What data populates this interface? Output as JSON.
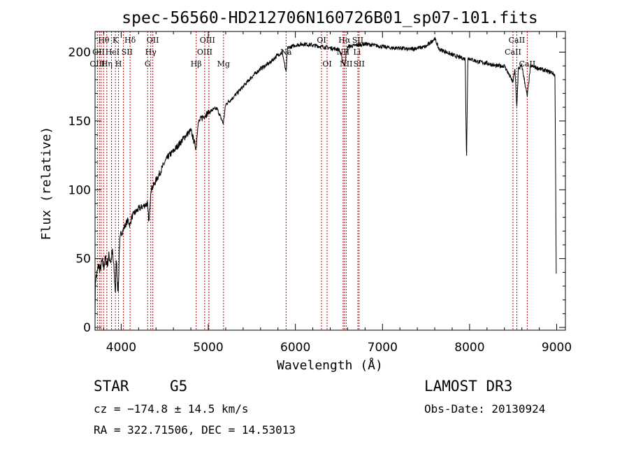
{
  "chart_data": {
    "type": "line",
    "title": "spec-56560-HD212706N160726B01_sp07-101.fits",
    "xlabel": "Wavelength (Å)",
    "ylabel": "Flux (relative)",
    "xlim": [
      3700,
      9100
    ],
    "ylim": [
      -2,
      215
    ],
    "x_ticks": [
      4000,
      5000,
      6000,
      7000,
      8000,
      9000
    ],
    "y_ticks": [
      0,
      50,
      100,
      150,
      200
    ],
    "grid": false,
    "series": [
      {
        "anchors": [
          [
            3700,
            10
          ],
          [
            3705,
            35
          ],
          [
            3720,
            38
          ],
          [
            3740,
            45
          ],
          [
            3760,
            42
          ],
          [
            3780,
            48
          ],
          [
            3800,
            44
          ],
          [
            3820,
            50
          ],
          [
            3840,
            46
          ],
          [
            3860,
            52
          ],
          [
            3880,
            48
          ],
          [
            3900,
            55
          ],
          [
            3920,
            40
          ],
          [
            3933,
            25
          ],
          [
            3945,
            50
          ],
          [
            3960,
            30
          ],
          [
            3968,
            28
          ],
          [
            3980,
            60
          ],
          [
            4000,
            68
          ],
          [
            4030,
            72
          ],
          [
            4060,
            76
          ],
          [
            4080,
            78
          ],
          [
            4100,
            74
          ],
          [
            4120,
            80
          ],
          [
            4150,
            83
          ],
          [
            4200,
            86
          ],
          [
            4250,
            88
          ],
          [
            4300,
            90
          ],
          [
            4320,
            76
          ],
          [
            4340,
            100
          ],
          [
            4380,
            104
          ],
          [
            4400,
            107
          ],
          [
            4450,
            113
          ],
          [
            4500,
            120
          ],
          [
            4550,
            125
          ],
          [
            4600,
            128
          ],
          [
            4650,
            132
          ],
          [
            4700,
            136
          ],
          [
            4750,
            140
          ],
          [
            4800,
            143
          ],
          [
            4861,
            130
          ],
          [
            4880,
            148
          ],
          [
            4920,
            152
          ],
          [
            4960,
            154
          ],
          [
            5000,
            156
          ],
          [
            5050,
            158
          ],
          [
            5100,
            159
          ],
          [
            5172,
            148
          ],
          [
            5200,
            162
          ],
          [
            5300,
            168
          ],
          [
            5400,
            175
          ],
          [
            5500,
            182
          ],
          [
            5600,
            188
          ],
          [
            5700,
            192
          ],
          [
            5800,
            198
          ],
          [
            5850,
            200
          ],
          [
            5893,
            185
          ],
          [
            5910,
            203
          ],
          [
            6000,
            205
          ],
          [
            6100,
            206
          ],
          [
            6200,
            205
          ],
          [
            6300,
            204
          ],
          [
            6400,
            203
          ],
          [
            6500,
            202
          ],
          [
            6563,
            190
          ],
          [
            6600,
            204
          ],
          [
            6700,
            205
          ],
          [
            6800,
            206
          ],
          [
            6900,
            205
          ],
          [
            7000,
            204
          ],
          [
            7100,
            203
          ],
          [
            7200,
            203
          ],
          [
            7300,
            202
          ],
          [
            7400,
            203
          ],
          [
            7500,
            204
          ],
          [
            7600,
            210
          ],
          [
            7650,
            202
          ],
          [
            7700,
            201
          ],
          [
            7800,
            198
          ],
          [
            7900,
            196
          ],
          [
            7950,
            195
          ],
          [
            7965,
            120
          ],
          [
            7980,
            196
          ],
          [
            8050,
            194
          ],
          [
            8100,
            193
          ],
          [
            8200,
            192
          ],
          [
            8300,
            190
          ],
          [
            8400,
            190
          ],
          [
            8498,
            178
          ],
          [
            8520,
            188
          ],
          [
            8542,
            160
          ],
          [
            8560,
            188
          ],
          [
            8600,
            190
          ],
          [
            8662,
            168
          ],
          [
            8700,
            190
          ],
          [
            8800,
            188
          ],
          [
            8900,
            186
          ],
          [
            8950,
            185
          ],
          [
            8980,
            183
          ],
          [
            8995,
            40
          ]
        ]
      }
    ],
    "lines": {
      "wavelengths": [
        3727,
        3750,
        3770,
        3798,
        3835,
        3889,
        3934,
        3969,
        4026,
        4102,
        4304,
        4340,
        4363,
        4861,
        4959,
        5007,
        5175,
        5893,
        6300,
        6364,
        6548,
        6563,
        6583,
        6717,
        6731,
        8498,
        8542,
        8662
      ],
      "labels": [
        {
          "text": "Hθ",
          "x": 3800,
          "row": 0
        },
        {
          "text": "K",
          "x": 3934,
          "row": 0
        },
        {
          "text": "Hδ",
          "x": 4102,
          "row": 0
        },
        {
          "text": "OII",
          "x": 4363,
          "row": 0
        },
        {
          "text": "OIII",
          "x": 4990,
          "row": 0
        },
        {
          "text": "OI",
          "x": 6300,
          "row": 0
        },
        {
          "text": "Hα",
          "x": 6563,
          "row": 0
        },
        {
          "text": "SII",
          "x": 6717,
          "row": 0
        },
        {
          "text": "CaII",
          "x": 8542,
          "row": 0
        },
        {
          "text": "OII",
          "x": 3740,
          "row": 1
        },
        {
          "text": "HeI",
          "x": 3900,
          "row": 1
        },
        {
          "text": "SII",
          "x": 4068,
          "row": 1
        },
        {
          "text": "Hγ",
          "x": 4340,
          "row": 1
        },
        {
          "text": "OIII",
          "x": 4959,
          "row": 1
        },
        {
          "text": "Na",
          "x": 5893,
          "row": 1
        },
        {
          "text": "NII",
          "x": 6548,
          "row": 1
        },
        {
          "text": "Li",
          "x": 6708,
          "row": 1
        },
        {
          "text": "CaII",
          "x": 8498,
          "row": 1
        },
        {
          "text": "OIII",
          "x": 3727,
          "row": 2
        },
        {
          "text": "Hη",
          "x": 3835,
          "row": 2
        },
        {
          "text": "H",
          "x": 3969,
          "row": 2
        },
        {
          "text": "G",
          "x": 4304,
          "row": 2
        },
        {
          "text": "Hβ",
          "x": 4861,
          "row": 2
        },
        {
          "text": "Mg",
          "x": 5175,
          "row": 2
        },
        {
          "text": "OI",
          "x": 6364,
          "row": 2
        },
        {
          "text": "NII",
          "x": 6583,
          "row": 2
        },
        {
          "text": "SII",
          "x": 6731,
          "row": 2
        },
        {
          "text": "CaII",
          "x": 8662,
          "row": 2
        }
      ]
    }
  },
  "info": {
    "class": "STAR",
    "subclass": "G5",
    "cz": "cz = −174.8 ± 14.5 km/s",
    "radec": "RA = 322.71506, DEC =  14.53013",
    "survey": "LAMOST DR3",
    "obsdate": "Obs-Date: 20130924"
  }
}
